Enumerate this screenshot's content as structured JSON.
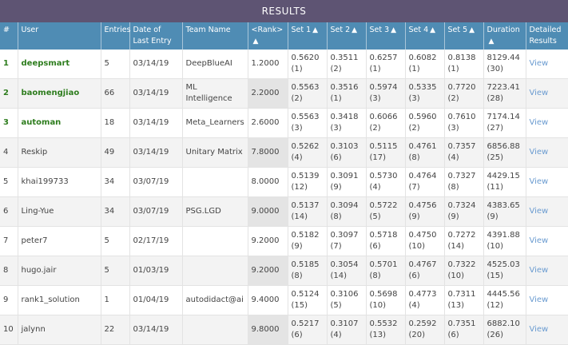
{
  "title": "RESULTS",
  "headers": {
    "num": "#",
    "user": "User",
    "entries": "Entries",
    "date": "Date of Last Entry",
    "team": "Team Name",
    "rank": "<Rank>",
    "set1": "Set 1",
    "set2": "Set 2",
    "set3": "Set 3",
    "set4": "Set 4",
    "set5": "Set 5",
    "duration": "Duration",
    "detailed": "Detailed Results",
    "sort_icon": "triangle-up-icon"
  },
  "view_label": "View",
  "rows": [
    {
      "num": "1",
      "user": "deepsmart",
      "entries": "5",
      "date": "03/14/19",
      "team": "DeepBlueAI",
      "rank": "1.2000",
      "set1": "0.5620",
      "set1r": "(1)",
      "set2": "0.3511",
      "set2r": "(2)",
      "set3": "0.6257",
      "set3r": "(1)",
      "set4": "0.6082",
      "set4r": "(1)",
      "set5": "0.8138",
      "set5r": "(1)",
      "duration": "8129.44",
      "durationr": "(30)"
    },
    {
      "num": "2",
      "user": "baomengjiao",
      "entries": "66",
      "date": "03/14/19",
      "team": "ML Intelligence",
      "rank": "2.2000",
      "set1": "0.5563",
      "set1r": "(2)",
      "set2": "0.3516",
      "set2r": "(1)",
      "set3": "0.5974",
      "set3r": "(3)",
      "set4": "0.5335",
      "set4r": "(3)",
      "set5": "0.7720",
      "set5r": "(2)",
      "duration": "7223.41",
      "durationr": "(28)"
    },
    {
      "num": "3",
      "user": "automan",
      "entries": "18",
      "date": "03/14/19",
      "team": "Meta_Learners",
      "rank": "2.6000",
      "set1": "0.5563",
      "set1r": "(3)",
      "set2": "0.3418",
      "set2r": "(3)",
      "set3": "0.6066",
      "set3r": "(2)",
      "set4": "0.5960",
      "set4r": "(2)",
      "set5": "0.7610",
      "set5r": "(3)",
      "duration": "7174.14",
      "durationr": "(27)"
    },
    {
      "num": "4",
      "user": "Reskip",
      "entries": "49",
      "date": "03/14/19",
      "team": "Unitary Matrix",
      "rank": "7.8000",
      "set1": "0.5262",
      "set1r": "(4)",
      "set2": "0.3103",
      "set2r": "(6)",
      "set3": "0.5115",
      "set3r": "(17)",
      "set4": "0.4761",
      "set4r": "(8)",
      "set5": "0.7357",
      "set5r": "(4)",
      "duration": "6856.88",
      "durationr": "(25)"
    },
    {
      "num": "5",
      "user": "khai199733",
      "entries": "34",
      "date": "03/07/19",
      "team": "",
      "rank": "8.0000",
      "set1": "0.5139",
      "set1r": "(12)",
      "set2": "0.3091",
      "set2r": "(9)",
      "set3": "0.5730",
      "set3r": "(4)",
      "set4": "0.4764",
      "set4r": "(7)",
      "set5": "0.7327",
      "set5r": "(8)",
      "duration": "4429.15",
      "durationr": "(11)"
    },
    {
      "num": "6",
      "user": "Ling-Yue",
      "entries": "34",
      "date": "03/07/19",
      "team": "PSG.LGD",
      "rank": "9.0000",
      "set1": "0.5137",
      "set1r": "(14)",
      "set2": "0.3094",
      "set2r": "(8)",
      "set3": "0.5722",
      "set3r": "(5)",
      "set4": "0.4756",
      "set4r": "(9)",
      "set5": "0.7324",
      "set5r": "(9)",
      "duration": "4383.65",
      "durationr": "(9)"
    },
    {
      "num": "7",
      "user": "peter7",
      "entries": "5",
      "date": "02/17/19",
      "team": "",
      "rank": "9.2000",
      "set1": "0.5182",
      "set1r": "(9)",
      "set2": "0.3097",
      "set2r": "(7)",
      "set3": "0.5718",
      "set3r": "(6)",
      "set4": "0.4750",
      "set4r": "(10)",
      "set5": "0.7272",
      "set5r": "(14)",
      "duration": "4391.88",
      "durationr": "(10)"
    },
    {
      "num": "8",
      "user": "hugo.jair",
      "entries": "5",
      "date": "01/03/19",
      "team": "",
      "rank": "9.2000",
      "set1": "0.5185",
      "set1r": "(8)",
      "set2": "0.3054",
      "set2r": "(14)",
      "set3": "0.5701",
      "set3r": "(8)",
      "set4": "0.4767",
      "set4r": "(6)",
      "set5": "0.7322",
      "set5r": "(10)",
      "duration": "4525.03",
      "durationr": "(15)"
    },
    {
      "num": "9",
      "user": "rank1_solution",
      "entries": "1",
      "date": "01/04/19",
      "team": "autodidact@ai",
      "rank": "9.4000",
      "set1": "0.5124",
      "set1r": "(15)",
      "set2": "0.3106",
      "set2r": "(5)",
      "set3": "0.5698",
      "set3r": "(10)",
      "set4": "0.4773",
      "set4r": "(4)",
      "set5": "0.7311",
      "set5r": "(13)",
      "duration": "4445.56",
      "durationr": "(12)"
    },
    {
      "num": "10",
      "user": "jalynn",
      "entries": "22",
      "date": "03/14/19",
      "team": "",
      "rank": "9.8000",
      "set1": "0.5217",
      "set1r": "(6)",
      "set2": "0.3107",
      "set2r": "(4)",
      "set3": "0.5532",
      "set3r": "(13)",
      "set4": "0.2592",
      "set4r": "(20)",
      "set5": "0.7351",
      "set5r": "(6)",
      "duration": "6882.10",
      "durationr": "(26)"
    }
  ]
}
